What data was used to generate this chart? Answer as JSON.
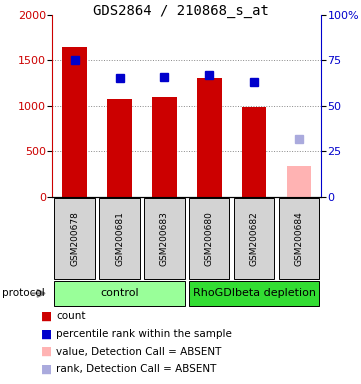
{
  "title": "GDS2864 / 210868_s_at",
  "samples": [
    "GSM200678",
    "GSM200681",
    "GSM200683",
    "GSM200680",
    "GSM200682",
    "GSM200684"
  ],
  "bar_values": [
    1650,
    1075,
    1100,
    1310,
    985,
    335
  ],
  "bar_colors": [
    "#cc0000",
    "#cc0000",
    "#cc0000",
    "#cc0000",
    "#cc0000",
    "#ffb3b3"
  ],
  "rank_values": [
    75,
    65,
    66,
    67,
    63,
    32
  ],
  "rank_colors": [
    "#0000cc",
    "#0000cc",
    "#0000cc",
    "#0000cc",
    "#0000cc",
    "#aaaadd"
  ],
  "left_ylim": [
    0,
    2000
  ],
  "left_yticks": [
    0,
    500,
    1000,
    1500,
    2000
  ],
  "right_ylim": [
    0,
    100
  ],
  "right_yticks": [
    0,
    25,
    50,
    75,
    100
  ],
  "right_yticklabels": [
    "0",
    "25",
    "50",
    "75",
    "100%"
  ],
  "protocol_groups": [
    {
      "label": "control",
      "indices": [
        0,
        1,
        2
      ],
      "color": "#99ff99"
    },
    {
      "label": "RhoGDIbeta depletion",
      "indices": [
        3,
        4,
        5
      ],
      "color": "#33dd33"
    }
  ],
  "legend_items": [
    {
      "label": "count",
      "color": "#cc0000"
    },
    {
      "label": "percentile rank within the sample",
      "color": "#0000cc"
    },
    {
      "label": "value, Detection Call = ABSENT",
      "color": "#ffb3b3"
    },
    {
      "label": "rank, Detection Call = ABSENT",
      "color": "#aaaadd"
    }
  ],
  "grid_dotted_at": [
    500,
    1000,
    1500
  ],
  "title_fontsize": 10,
  "tick_fontsize": 8,
  "sample_fontsize": 6.5,
  "proto_fontsize": 8,
  "legend_fontsize": 7.5,
  "marker_size": 6
}
